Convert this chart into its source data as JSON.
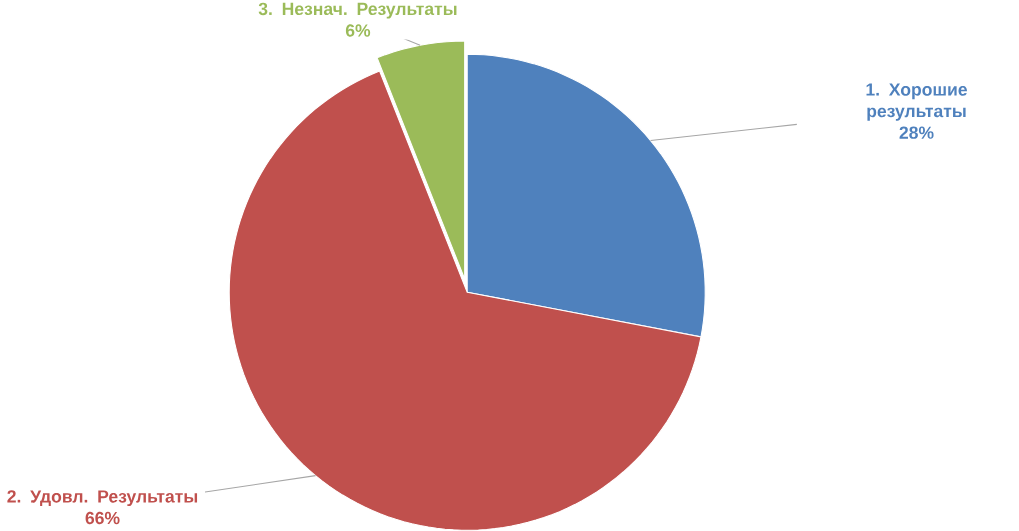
{
  "chart_data": {
    "type": "pie",
    "categories": [
      "1. Хорошие результаты",
      "2. Удовл. Результаты",
      "3. Незнач. Результаты"
    ],
    "values": [
      28,
      66,
      6
    ],
    "value_labels": [
      "28%",
      "66%",
      "6%"
    ],
    "colors": [
      "#4f81bd",
      "#c0504d",
      "#9bbb59"
    ]
  }
}
